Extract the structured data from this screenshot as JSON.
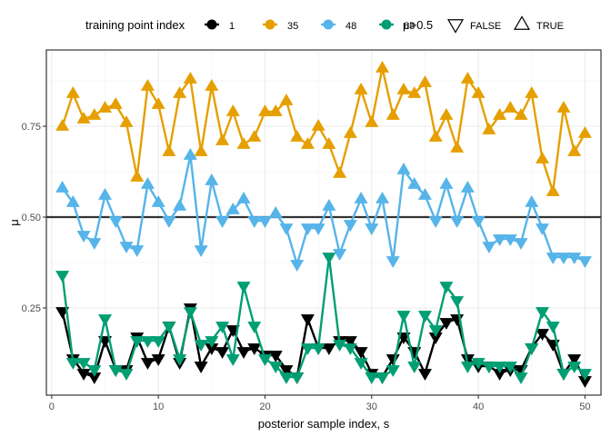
{
  "chart_data": {
    "type": "line",
    "xlabel": "posterior sample index, s",
    "ylabel": "μ",
    "xlim": [
      -0.5,
      51.5
    ],
    "ylim": [
      0.01,
      0.96
    ],
    "x_ticks": [
      0,
      10,
      20,
      30,
      40,
      50
    ],
    "y_ticks": [
      0.25,
      0.5,
      0.75
    ],
    "y_tick_labels": [
      "0.25",
      "0.50",
      "0.75"
    ],
    "reference_line": 0.5,
    "grid": true,
    "legend_position": "top",
    "legend": {
      "color_title": "training point index",
      "shape_title": "μ>0.5",
      "shape_entries": [
        {
          "label": "FALSE",
          "shape": "triangle-down"
        },
        {
          "label": "TRUE",
          "shape": "triangle-up"
        }
      ]
    },
    "x": [
      1,
      2,
      3,
      4,
      5,
      6,
      7,
      8,
      9,
      10,
      11,
      12,
      13,
      14,
      15,
      16,
      17,
      18,
      19,
      20,
      21,
      22,
      23,
      24,
      25,
      26,
      27,
      28,
      29,
      30,
      31,
      32,
      33,
      34,
      35,
      36,
      37,
      38,
      39,
      40,
      41,
      42,
      43,
      44,
      45,
      46,
      47,
      48,
      49,
      50
    ],
    "series": [
      {
        "name": "1",
        "color": "#000000",
        "values": [
          0.24,
          0.11,
          0.07,
          0.06,
          0.16,
          0.08,
          0.08,
          0.17,
          0.1,
          0.11,
          0.2,
          0.1,
          0.25,
          0.09,
          0.14,
          0.13,
          0.19,
          0.13,
          0.14,
          0.12,
          0.12,
          0.08,
          0.06,
          0.22,
          0.14,
          0.14,
          0.16,
          0.16,
          0.13,
          0.07,
          0.06,
          0.11,
          0.17,
          0.13,
          0.07,
          0.17,
          0.21,
          0.22,
          0.11,
          0.09,
          0.09,
          0.07,
          0.08,
          0.08,
          0.14,
          0.18,
          0.15,
          0.07,
          0.11,
          0.05
        ]
      },
      {
        "name": "35",
        "color": "#E69F00",
        "values": [
          0.75,
          0.84,
          0.77,
          0.78,
          0.8,
          0.81,
          0.76,
          0.61,
          0.86,
          0.81,
          0.68,
          0.84,
          0.88,
          0.68,
          0.86,
          0.71,
          0.79,
          0.7,
          0.72,
          0.79,
          0.79,
          0.82,
          0.72,
          0.7,
          0.75,
          0.7,
          0.62,
          0.73,
          0.85,
          0.76,
          0.91,
          0.78,
          0.85,
          0.84,
          0.87,
          0.72,
          0.78,
          0.69,
          0.88,
          0.84,
          0.74,
          0.78,
          0.8,
          0.78,
          0.84,
          0.66,
          0.57,
          0.8,
          0.68,
          0.73
        ]
      },
      {
        "name": "48",
        "color": "#56B4E9",
        "values": [
          0.58,
          0.54,
          0.45,
          0.43,
          0.56,
          0.49,
          0.42,
          0.41,
          0.59,
          0.54,
          0.49,
          0.53,
          0.67,
          0.41,
          0.6,
          0.49,
          0.52,
          0.55,
          0.49,
          0.49,
          0.51,
          0.47,
          0.37,
          0.47,
          0.47,
          0.53,
          0.4,
          0.48,
          0.55,
          0.47,
          0.55,
          0.38,
          0.63,
          0.59,
          0.56,
          0.49,
          0.59,
          0.49,
          0.58,
          0.49,
          0.42,
          0.44,
          0.44,
          0.43,
          0.54,
          0.47,
          0.39,
          0.39,
          0.39,
          0.38
        ]
      },
      {
        "name": "68",
        "color": "#009E73",
        "values": [
          0.34,
          0.1,
          0.1,
          0.08,
          0.22,
          0.08,
          0.07,
          0.16,
          0.16,
          0.16,
          0.2,
          0.11,
          0.24,
          0.15,
          0.16,
          0.2,
          0.11,
          0.31,
          0.2,
          0.11,
          0.09,
          0.06,
          0.06,
          0.14,
          0.14,
          0.39,
          0.15,
          0.14,
          0.1,
          0.06,
          0.06,
          0.08,
          0.23,
          0.09,
          0.23,
          0.19,
          0.31,
          0.27,
          0.09,
          0.1,
          0.09,
          0.09,
          0.09,
          0.06,
          0.14,
          0.24,
          0.2,
          0.07,
          0.09,
          0.07
        ]
      }
    ]
  }
}
